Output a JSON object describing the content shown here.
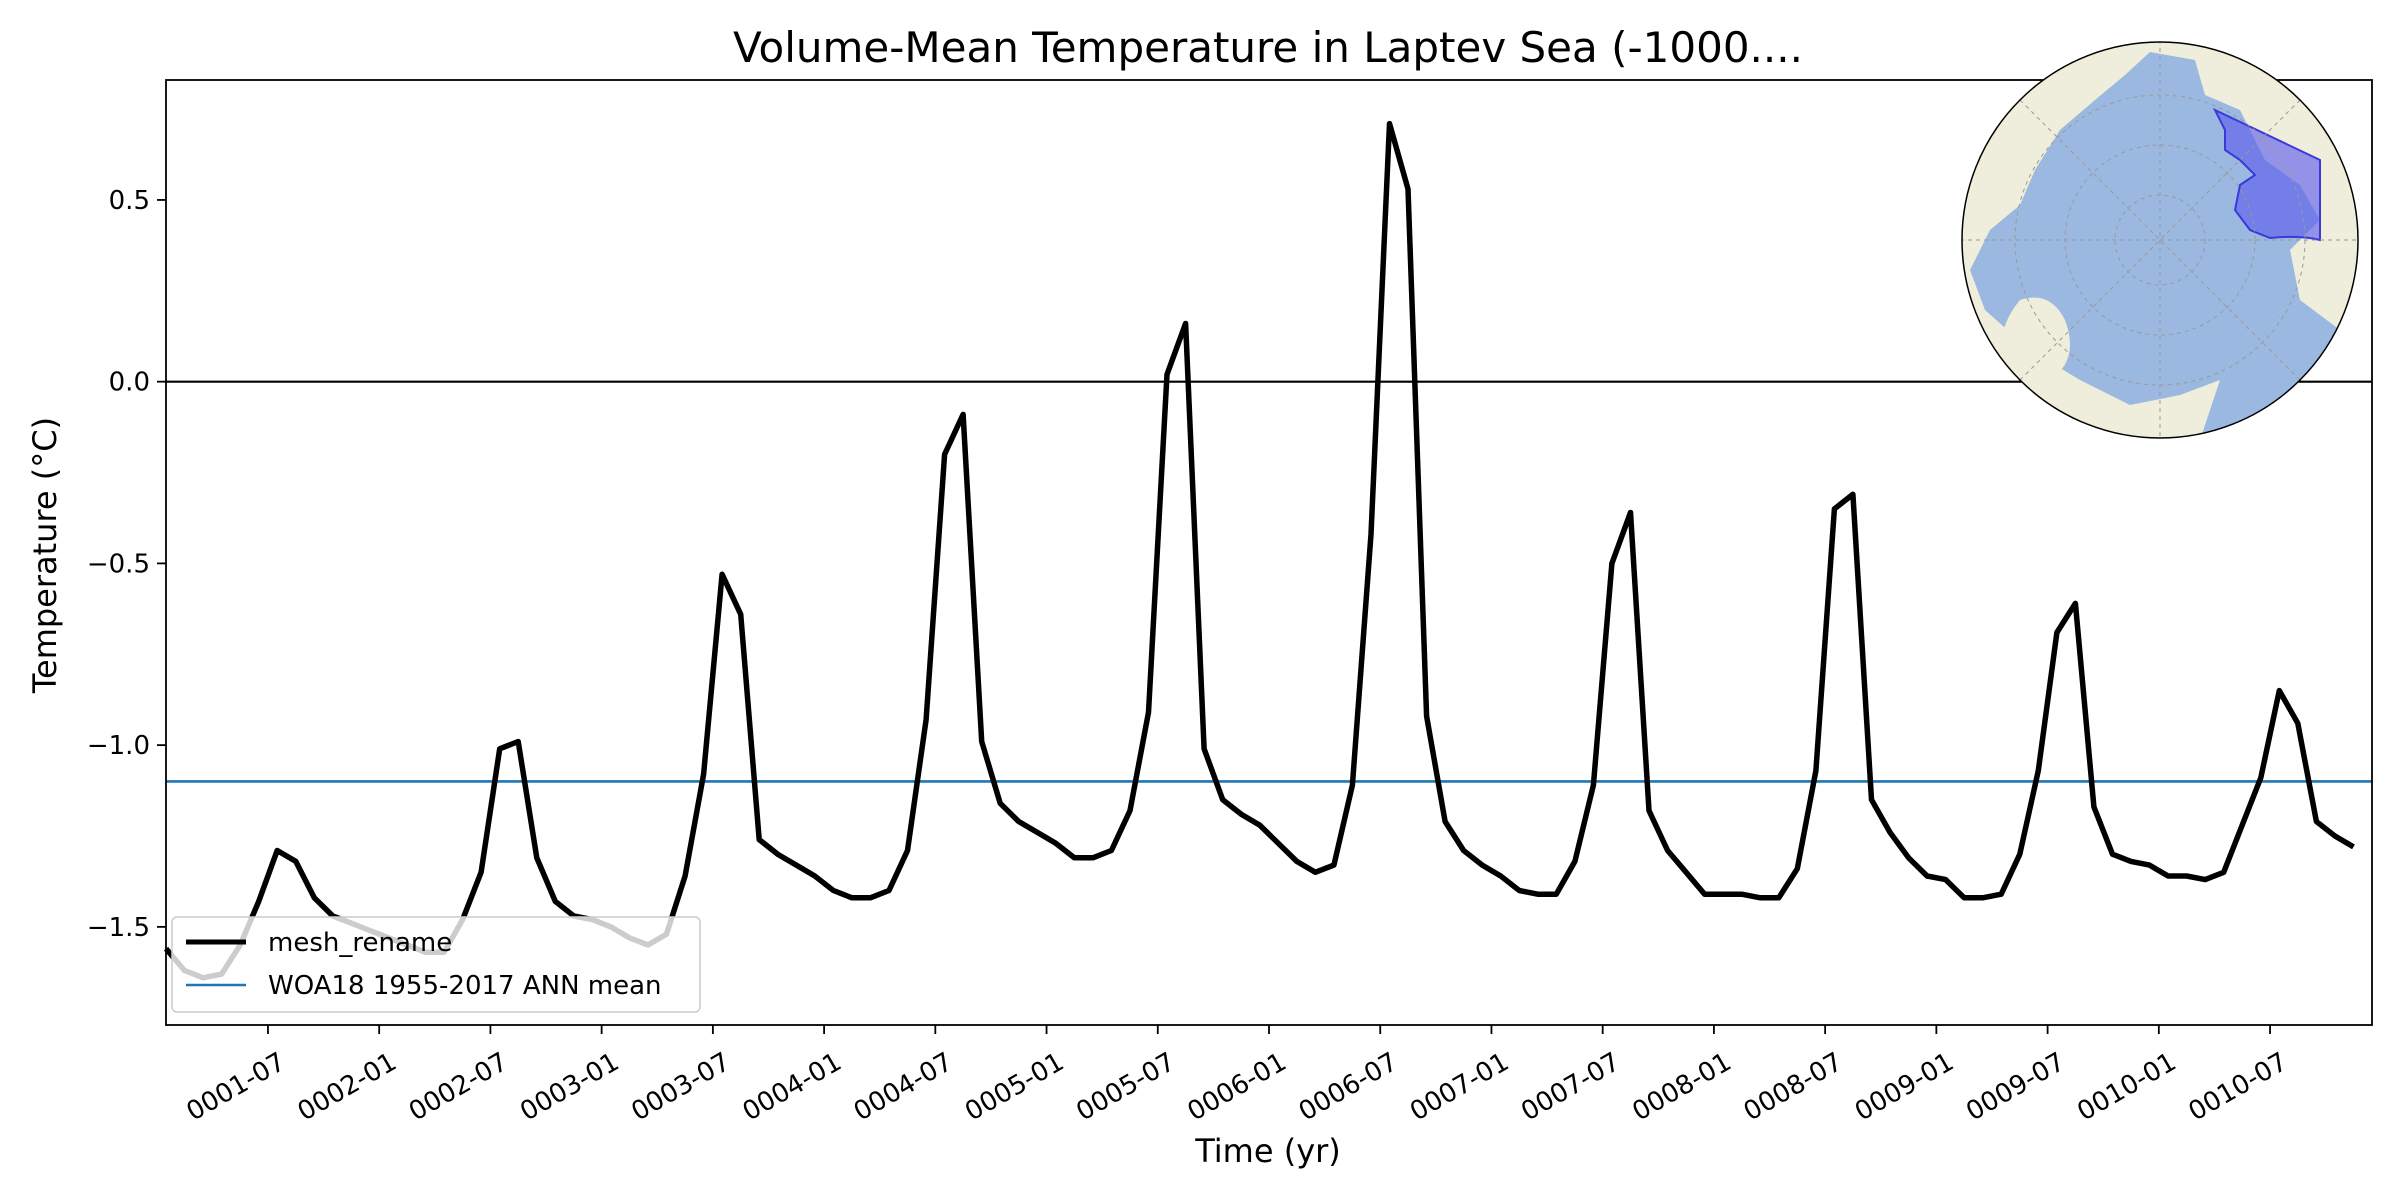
{
  "chart_data": {
    "type": "line",
    "title": "Volume-Mean Temperature in Laptev Sea (-1000....",
    "xlabel": "Time (yr)",
    "ylabel": "Temperature (°C)",
    "xlim_months": [
      0,
      119
    ],
    "ylim": [
      -1.77,
      0.83
    ],
    "y_ticks": [
      {
        "value": 0.5,
        "label": "0.5"
      },
      {
        "value": 0.0,
        "label": "0.0"
      },
      {
        "value": -0.5,
        "label": "−0.5"
      },
      {
        "value": -1.0,
        "label": "−1.0"
      },
      {
        "value": -1.5,
        "label": "−1.5"
      }
    ],
    "x_ticks": [
      {
        "month": 5.5,
        "label": "0001-07"
      },
      {
        "month": 11.5,
        "label": "0002-01"
      },
      {
        "month": 17.5,
        "label": "0002-07"
      },
      {
        "month": 23.5,
        "label": "0003-01"
      },
      {
        "month": 29.5,
        "label": "0003-07"
      },
      {
        "month": 35.5,
        "label": "0004-01"
      },
      {
        "month": 41.5,
        "label": "0004-07"
      },
      {
        "month": 47.5,
        "label": "0005-01"
      },
      {
        "month": 53.5,
        "label": "0005-07"
      },
      {
        "month": 59.5,
        "label": "0006-01"
      },
      {
        "month": 65.5,
        "label": "0006-07"
      },
      {
        "month": 71.5,
        "label": "0007-01"
      },
      {
        "month": 77.5,
        "label": "0007-07"
      },
      {
        "month": 83.5,
        "label": "0008-01"
      },
      {
        "month": 89.5,
        "label": "0008-07"
      },
      {
        "month": 95.5,
        "label": "0009-01"
      },
      {
        "month": 101.5,
        "label": "0009-07"
      },
      {
        "month": 107.5,
        "label": "0010-01"
      },
      {
        "month": 113.5,
        "label": "0010-07"
      }
    ],
    "zero_line": 0.0,
    "series": [
      {
        "name": "mesh_rename",
        "color": "#000000",
        "values": [
          -1.56,
          -1.62,
          -1.64,
          -1.63,
          -1.55,
          -1.43,
          -1.29,
          -1.32,
          -1.42,
          -1.47,
          -1.49,
          -1.51,
          -1.53,
          -1.55,
          -1.57,
          -1.57,
          -1.48,
          -1.35,
          -1.01,
          -0.99,
          -1.31,
          -1.43,
          -1.47,
          -1.48,
          -1.5,
          -1.53,
          -1.55,
          -1.52,
          -1.36,
          -1.08,
          -0.53,
          -0.64,
          -1.26,
          -1.3,
          -1.33,
          -1.36,
          -1.4,
          -1.42,
          -1.42,
          -1.4,
          -1.29,
          -0.93,
          -0.2,
          -0.09,
          -0.99,
          -1.16,
          -1.21,
          -1.24,
          -1.27,
          -1.31,
          -1.31,
          -1.29,
          -1.18,
          -0.91,
          0.02,
          0.16,
          -1.01,
          -1.15,
          -1.19,
          -1.22,
          -1.27,
          -1.32,
          -1.35,
          -1.33,
          -1.11,
          -0.42,
          0.71,
          0.53,
          -0.92,
          -1.21,
          -1.29,
          -1.33,
          -1.36,
          -1.4,
          -1.41,
          -1.41,
          -1.32,
          -1.11,
          -0.5,
          -0.36,
          -1.18,
          -1.29,
          -1.35,
          -1.41,
          -1.41,
          -1.41,
          -1.42,
          -1.42,
          -1.34,
          -1.07,
          -0.35,
          -0.31,
          -1.15,
          -1.24,
          -1.31,
          -1.36,
          -1.37,
          -1.42,
          -1.42,
          -1.41,
          -1.3,
          -1.07,
          -0.69,
          -0.61,
          -1.17,
          -1.3,
          -1.32,
          -1.33,
          -1.36,
          -1.36,
          -1.37,
          -1.35,
          -1.22,
          -1.09,
          -0.85,
          -0.94,
          -1.21,
          -1.25,
          -1.28
        ]
      },
      {
        "name": "WOA18 1955-2017 ANN mean",
        "color": "#1f77b4",
        "constant": -1.1
      }
    ],
    "legend": {
      "location": "lower-left",
      "entries": [
        "mesh_rename",
        "WOA18 1955-2017 ANN mean"
      ]
    },
    "inset_map": {
      "description": "Arctic polar map with Laptev Sea region highlighted",
      "ocean_color": "#9bb8e0",
      "land_color": "#efeddb",
      "region_color": "#5a5aee"
    }
  }
}
